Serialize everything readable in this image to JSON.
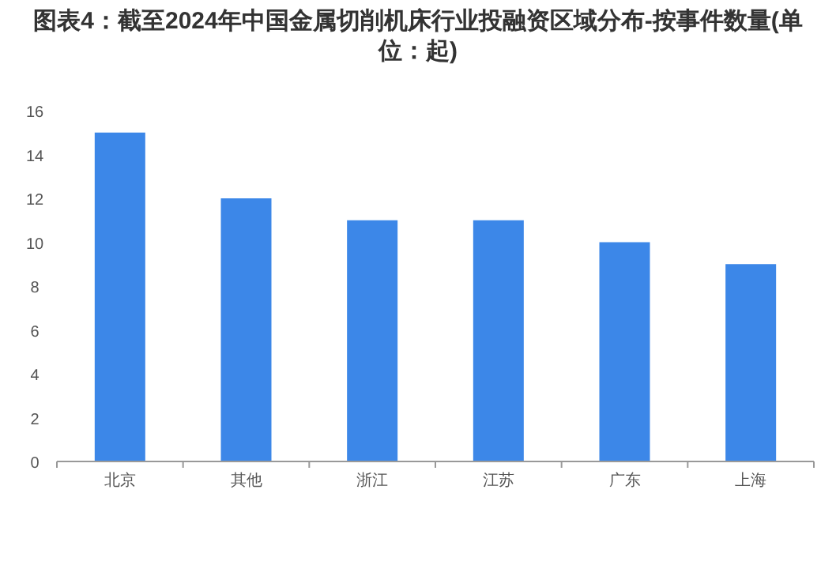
{
  "chart_data": {
    "type": "bar",
    "title": "图表4：截至2024年中国金属切削机床行业投融资区域分布-按事件数量(单位：起)",
    "categories": [
      "北京",
      "其他",
      "浙江",
      "江苏",
      "广东",
      "上海"
    ],
    "values": [
      15,
      12,
      11,
      11,
      10,
      9
    ],
    "color": "#3c87e8",
    "ylim": [
      0,
      16
    ],
    "yticks": [
      0,
      2,
      4,
      6,
      8,
      10,
      12,
      14,
      16
    ],
    "grid": false
  }
}
